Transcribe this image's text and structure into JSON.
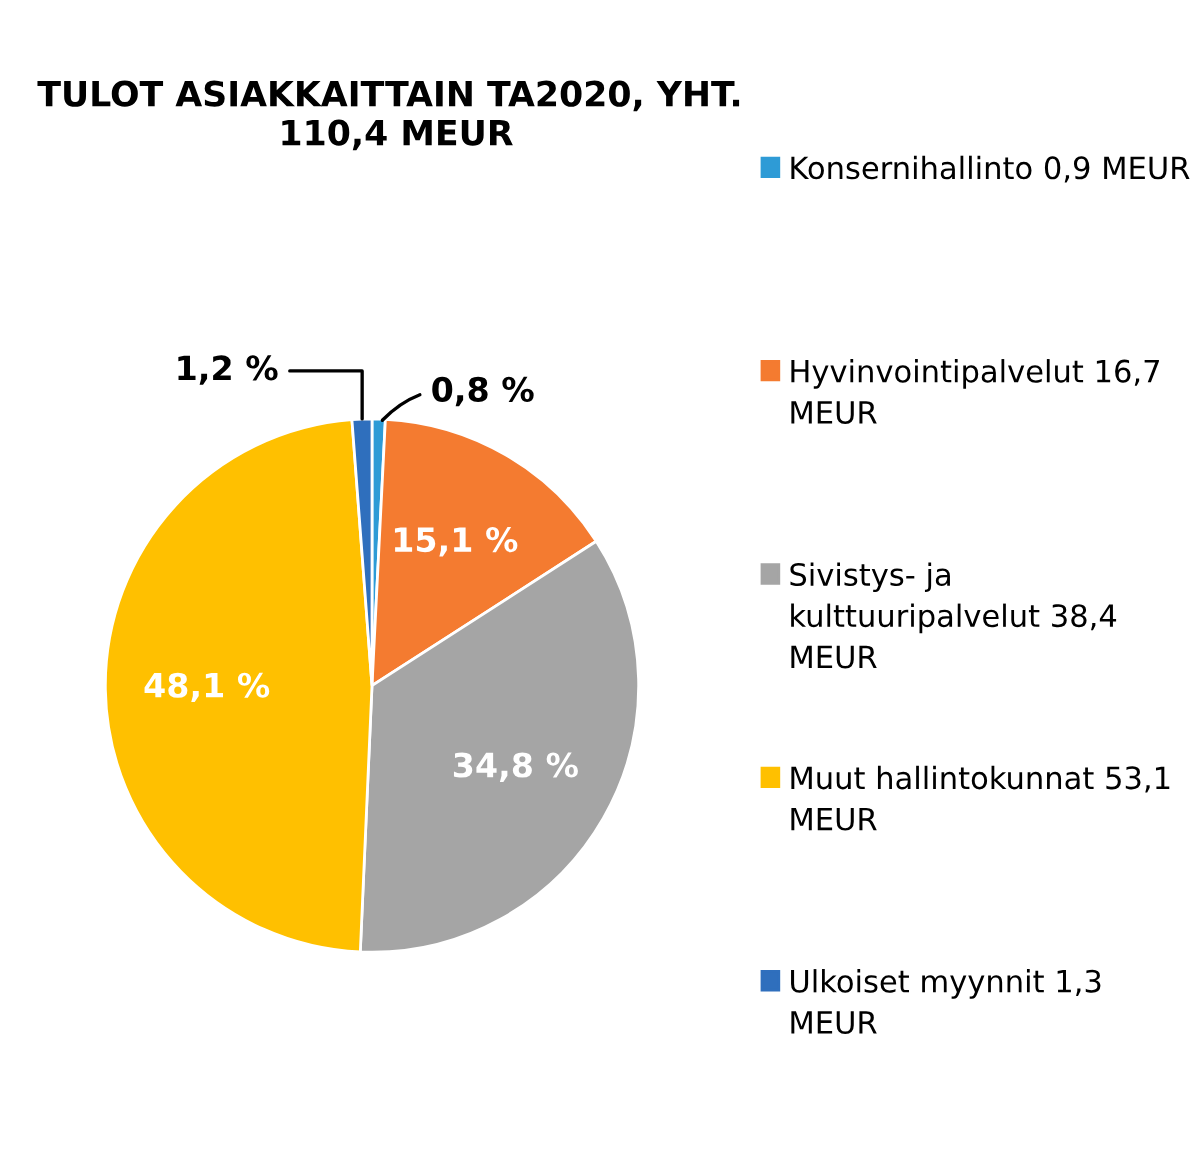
{
  "chart_data": {
    "type": "pie",
    "title": "TULOT ASIAKKAITTAIN TA2020, YHT.  110,4 MEUR",
    "categories": [
      "Konsernihallinto 0,9 MEUR",
      "Hyvinvointipalvelut 16,7 MEUR",
      "Sivistys- ja kulttuuripalvelut 38,4 MEUR",
      "Muut hallintokunnat 53,1 MEUR",
      "Ulkoiset myynnit 1,3 MEUR"
    ],
    "values": [
      0.8,
      15.1,
      34.8,
      48.1,
      1.2
    ],
    "colors": [
      "#2e9bd6",
      "#f47b30",
      "#a5a5a5",
      "#ffc000",
      "#2f6fbd"
    ],
    "value_labels": [
      "0,8 %",
      "15,1 %",
      "34,8 %",
      "48,1 %",
      "1,2 %"
    ],
    "legend": "right"
  }
}
